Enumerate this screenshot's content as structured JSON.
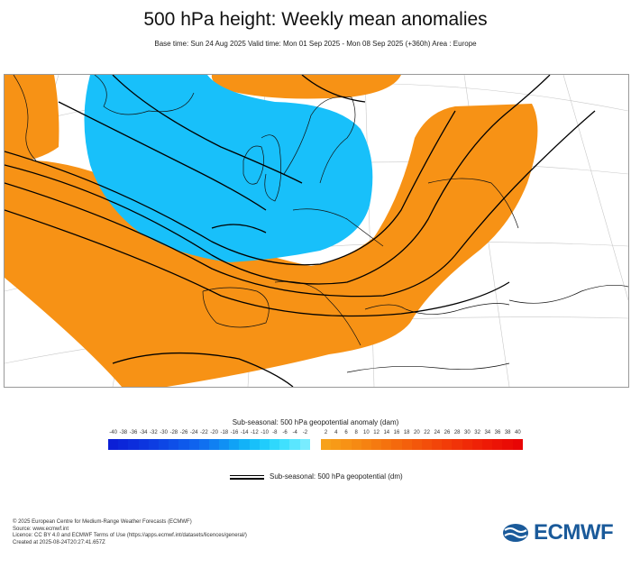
{
  "header": {
    "title": "500 hPa height: Weekly mean anomalies",
    "subtitle": "Base time: Sun 24 Aug 2025 Valid time: Mon 01 Sep 2025 - Mon 08 Sep 2025 (+360h) Area : Europe"
  },
  "colorbar": {
    "title": "Sub-seasonal: 500 hPa geopotential anomaly (dam)",
    "negative_ticks": [
      "-40",
      "-38",
      "-36",
      "-34",
      "-32",
      "-30",
      "-28",
      "-26",
      "-24",
      "-22",
      "-20",
      "-18",
      "-16",
      "-14",
      "-12",
      "-10",
      "-8",
      "-6",
      "-4",
      "-2"
    ],
    "positive_ticks": [
      "2",
      "4",
      "6",
      "8",
      "10",
      "12",
      "14",
      "16",
      "18",
      "20",
      "22",
      "24",
      "26",
      "28",
      "30",
      "32",
      "34",
      "36",
      "38",
      "40"
    ],
    "negative_colors": [
      "#0b1fd6",
      "#0b26d9",
      "#0c2ddc",
      "#0c35df",
      "#0d3de2",
      "#0d46e5",
      "#0e4fe8",
      "#0e59eb",
      "#0f63ee",
      "#1070f0",
      "#1080f2",
      "#1090f4",
      "#10a2f6",
      "#12b2f8",
      "#18c0fa",
      "#20ccfc",
      "#2fd8fd",
      "#40e0fe",
      "#5ae6ff",
      "#78ecff"
    ],
    "positive_colors": [
      "#f7a11a",
      "#f79a17",
      "#f79215",
      "#f68a13",
      "#f68211",
      "#f57a10",
      "#f5720e",
      "#f4690d",
      "#f4600c",
      "#f3570b",
      "#f34e0a",
      "#f24509",
      "#f23c08",
      "#f13308",
      "#f02a07",
      "#ef2207",
      "#ee1a06",
      "#ec1306",
      "#ea0c05",
      "#e80505"
    ]
  },
  "legend": {
    "contour_label": "Sub-seasonal: 500 hPa geopotential (dm)"
  },
  "map": {
    "anomaly_colors": {
      "negative": "#18c0fa",
      "positive": "#f79215"
    }
  },
  "footer": {
    "lines": [
      "© 2025 European Centre for Medium-Range Weather Forecasts (ECMWF)",
      "Source: www.ecmwf.int",
      "Licence: CC BY 4.0 and ECMWF Terms of Use (https://apps.ecmwf.int/datasets/licences/general/)",
      "Created at 2025-08-24T20:27:41.657Z"
    ]
  },
  "logo": {
    "text": "ECMWF"
  }
}
